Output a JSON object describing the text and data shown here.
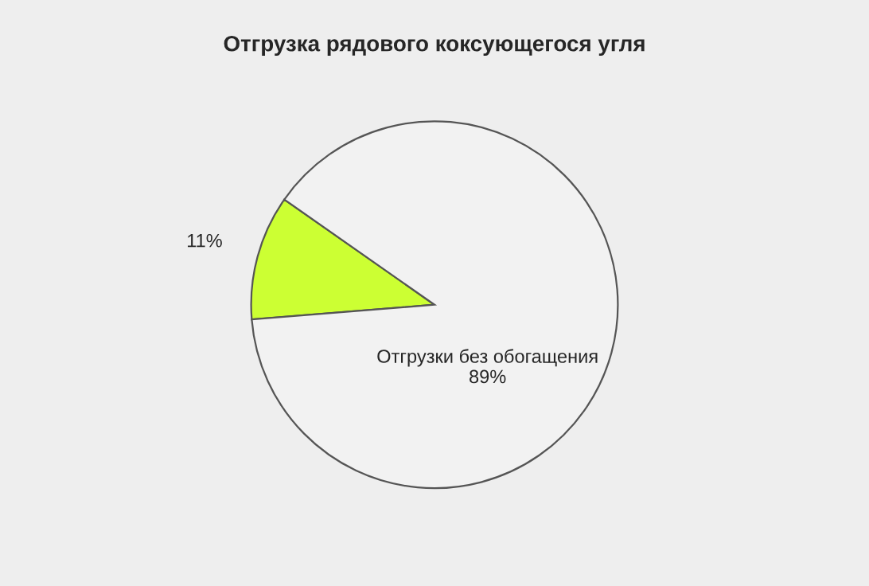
{
  "chart_data": {
    "type": "pie",
    "title": "Отгрузка рядового коксующегося угля",
    "categories": [
      null,
      "Отгрузки без обогащения"
    ],
    "values": [
      11,
      89
    ],
    "value_labels": [
      "11%",
      "89%"
    ],
    "colors": [
      "#ccff33",
      "#f2f2f2"
    ]
  }
}
